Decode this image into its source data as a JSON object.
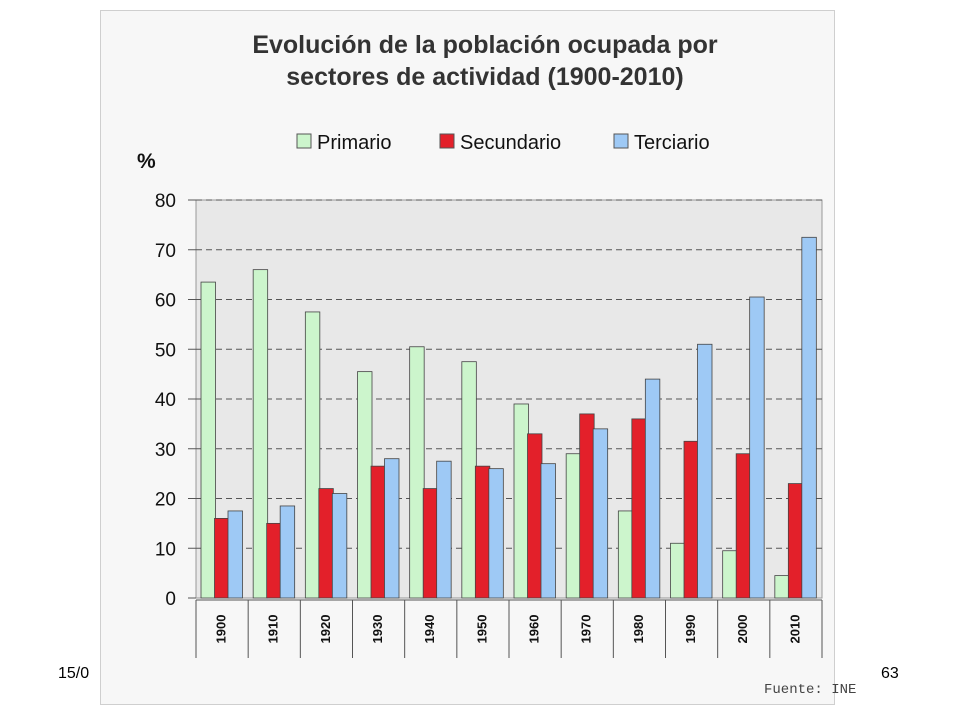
{
  "slide": {
    "date": "15/0",
    "page_number": "63"
  },
  "chart_data": {
    "type": "bar",
    "title": [
      "Evolución de la población ocupada por",
      "sectores de actividad (1900-2010)"
    ],
    "ylabel": "%",
    "xlabel": "",
    "ylim": [
      0,
      80
    ],
    "yticks": [
      0,
      10,
      20,
      30,
      40,
      50,
      60,
      70,
      80
    ],
    "grid": true,
    "legend_position": "top",
    "source": "Fuente: INE",
    "categories": [
      "1900",
      "1910",
      "1920",
      "1930",
      "1940",
      "1950",
      "1960",
      "1970",
      "1980",
      "1990",
      "2000",
      "2010"
    ],
    "series": [
      {
        "name": "Primario",
        "color": "#ccf5cc",
        "values": [
          63.5,
          66,
          57.5,
          45.5,
          50.5,
          47.5,
          39,
          29,
          17.5,
          11,
          9.5,
          4.5
        ]
      },
      {
        "name": "Secundario",
        "color": "#e3202a",
        "values": [
          16,
          15,
          22,
          26.5,
          22,
          26.5,
          33,
          37,
          36,
          31.5,
          29,
          23
        ]
      },
      {
        "name": "Terciario",
        "color": "#9ec9f5",
        "values": [
          17.5,
          18.5,
          21,
          28,
          27.5,
          26,
          27,
          34,
          44,
          51,
          60.5,
          72.5
        ]
      }
    ]
  }
}
